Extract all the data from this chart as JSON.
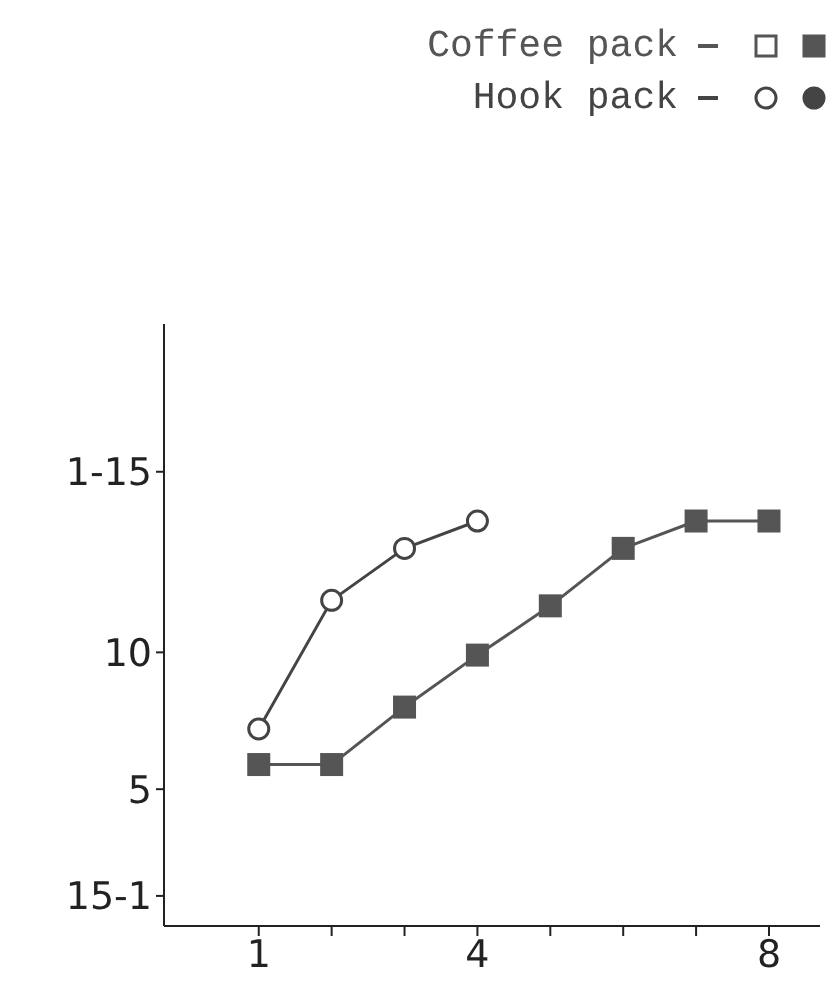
{
  "chart_data": {
    "type": "line",
    "x": [
      1,
      2,
      3,
      4,
      5,
      6,
      7,
      8
    ],
    "series": [
      {
        "name": "Coffee pack",
        "color": "#555555",
        "marker": "square",
        "values": [
          5.9,
          5.9,
          8.0,
          9.9,
          11.7,
          13.8,
          14.8,
          14.8
        ]
      },
      {
        "name": "Hook pack",
        "color": "#444444",
        "marker": "circle",
        "values": [
          7.2,
          11.9,
          13.8,
          14.8,
          null,
          null,
          null,
          null
        ]
      }
    ],
    "xlim": [
      -0.3,
      8.7
    ],
    "xticks": [
      1,
      {
        "value": 2,
        "label": null
      },
      {
        "value": 3,
        "label": null
      },
      4,
      {
        "value": 5,
        "label": null
      },
      {
        "value": 6,
        "label": null
      },
      {
        "value": 7,
        "label": null
      },
      8
    ],
    "ylim": [
      0,
      22
    ],
    "yticks": [
      {
        "value": 1.1,
        "label": "15-1"
      },
      5,
      10,
      {
        "value": 16.6,
        "label": "1-15"
      }
    ],
    "grid": false,
    "legend": "top right",
    "line_style": "solid"
  }
}
